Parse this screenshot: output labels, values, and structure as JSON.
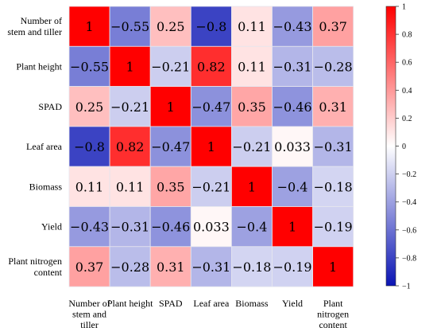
{
  "chart_data": {
    "type": "heatmap",
    "title": "",
    "variables": [
      [
        "Number of",
        "stem and tiller"
      ],
      [
        "Plant height"
      ],
      [
        "SPAD"
      ],
      [
        "Leaf area"
      ],
      [
        "Biomass"
      ],
      [
        "Yield"
      ],
      [
        "Plant nitrogen",
        "content"
      ]
    ],
    "x_labels": [
      [
        "Number of",
        "stem and",
        "tiller"
      ],
      [
        "Plant height"
      ],
      [
        "SPAD"
      ],
      [
        "Leaf area"
      ],
      [
        "Biomass"
      ],
      [
        "Yield"
      ],
      [
        "Plant",
        "nitrogen",
        "content"
      ]
    ],
    "matrix": [
      [
        1,
        -0.55,
        0.25,
        -0.8,
        0.11,
        -0.43,
        0.37
      ],
      [
        -0.55,
        1,
        -0.21,
        0.82,
        0.11,
        -0.31,
        -0.28
      ],
      [
        0.25,
        -0.21,
        1,
        -0.47,
        0.35,
        -0.46,
        0.31
      ],
      [
        -0.8,
        0.82,
        -0.47,
        1,
        -0.21,
        0.033,
        -0.31
      ],
      [
        0.11,
        0.11,
        0.35,
        -0.21,
        1,
        -0.4,
        -0.18
      ],
      [
        -0.43,
        -0.31,
        -0.46,
        0.033,
        -0.4,
        1,
        -0.19
      ],
      [
        0.37,
        -0.28,
        0.31,
        -0.31,
        -0.18,
        -0.19,
        1
      ]
    ],
    "colorbar": {
      "range": [
        -1,
        1
      ],
      "ticks": [
        1,
        0.8,
        0.6,
        0.4,
        0.2,
        0,
        -0.2,
        -0.4,
        -0.6,
        -0.8,
        -1
      ],
      "colors": {
        "negative": "#0a14b4",
        "zero": "#ffffff",
        "positive": "#ff0000"
      }
    }
  }
}
